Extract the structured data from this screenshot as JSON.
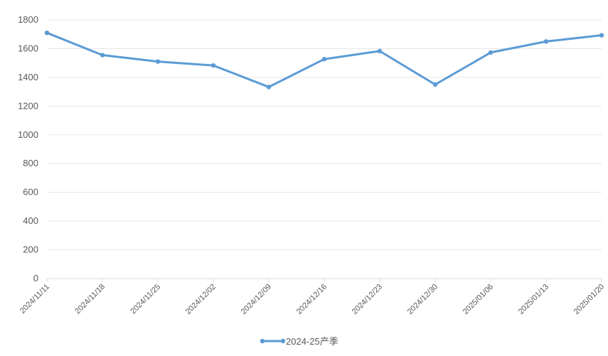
{
  "chart_data": {
    "type": "line",
    "categories": [
      "2024/11/11",
      "2024/11/18",
      "2024/11/25",
      "2024/12/02",
      "2024/12/09",
      "2024/12/16",
      "2024/12/23",
      "2024/12/30",
      "2025/01/06",
      "2025/01/13",
      "2025/01/20"
    ],
    "series": [
      {
        "name": "2024-25产季",
        "values": [
          1710,
          1555,
          1510,
          1483,
          1333,
          1527,
          1583,
          1350,
          1573,
          1650,
          1693
        ],
        "color": "#5b9bd5"
      }
    ],
    "ylim": [
      0,
      1800
    ],
    "yticks": [
      0,
      200,
      400,
      600,
      800,
      1000,
      1200,
      1400,
      1600,
      1800
    ],
    "grid": true,
    "legend": "bottom-center",
    "title": "",
    "xlabel": "",
    "ylabel": ""
  }
}
